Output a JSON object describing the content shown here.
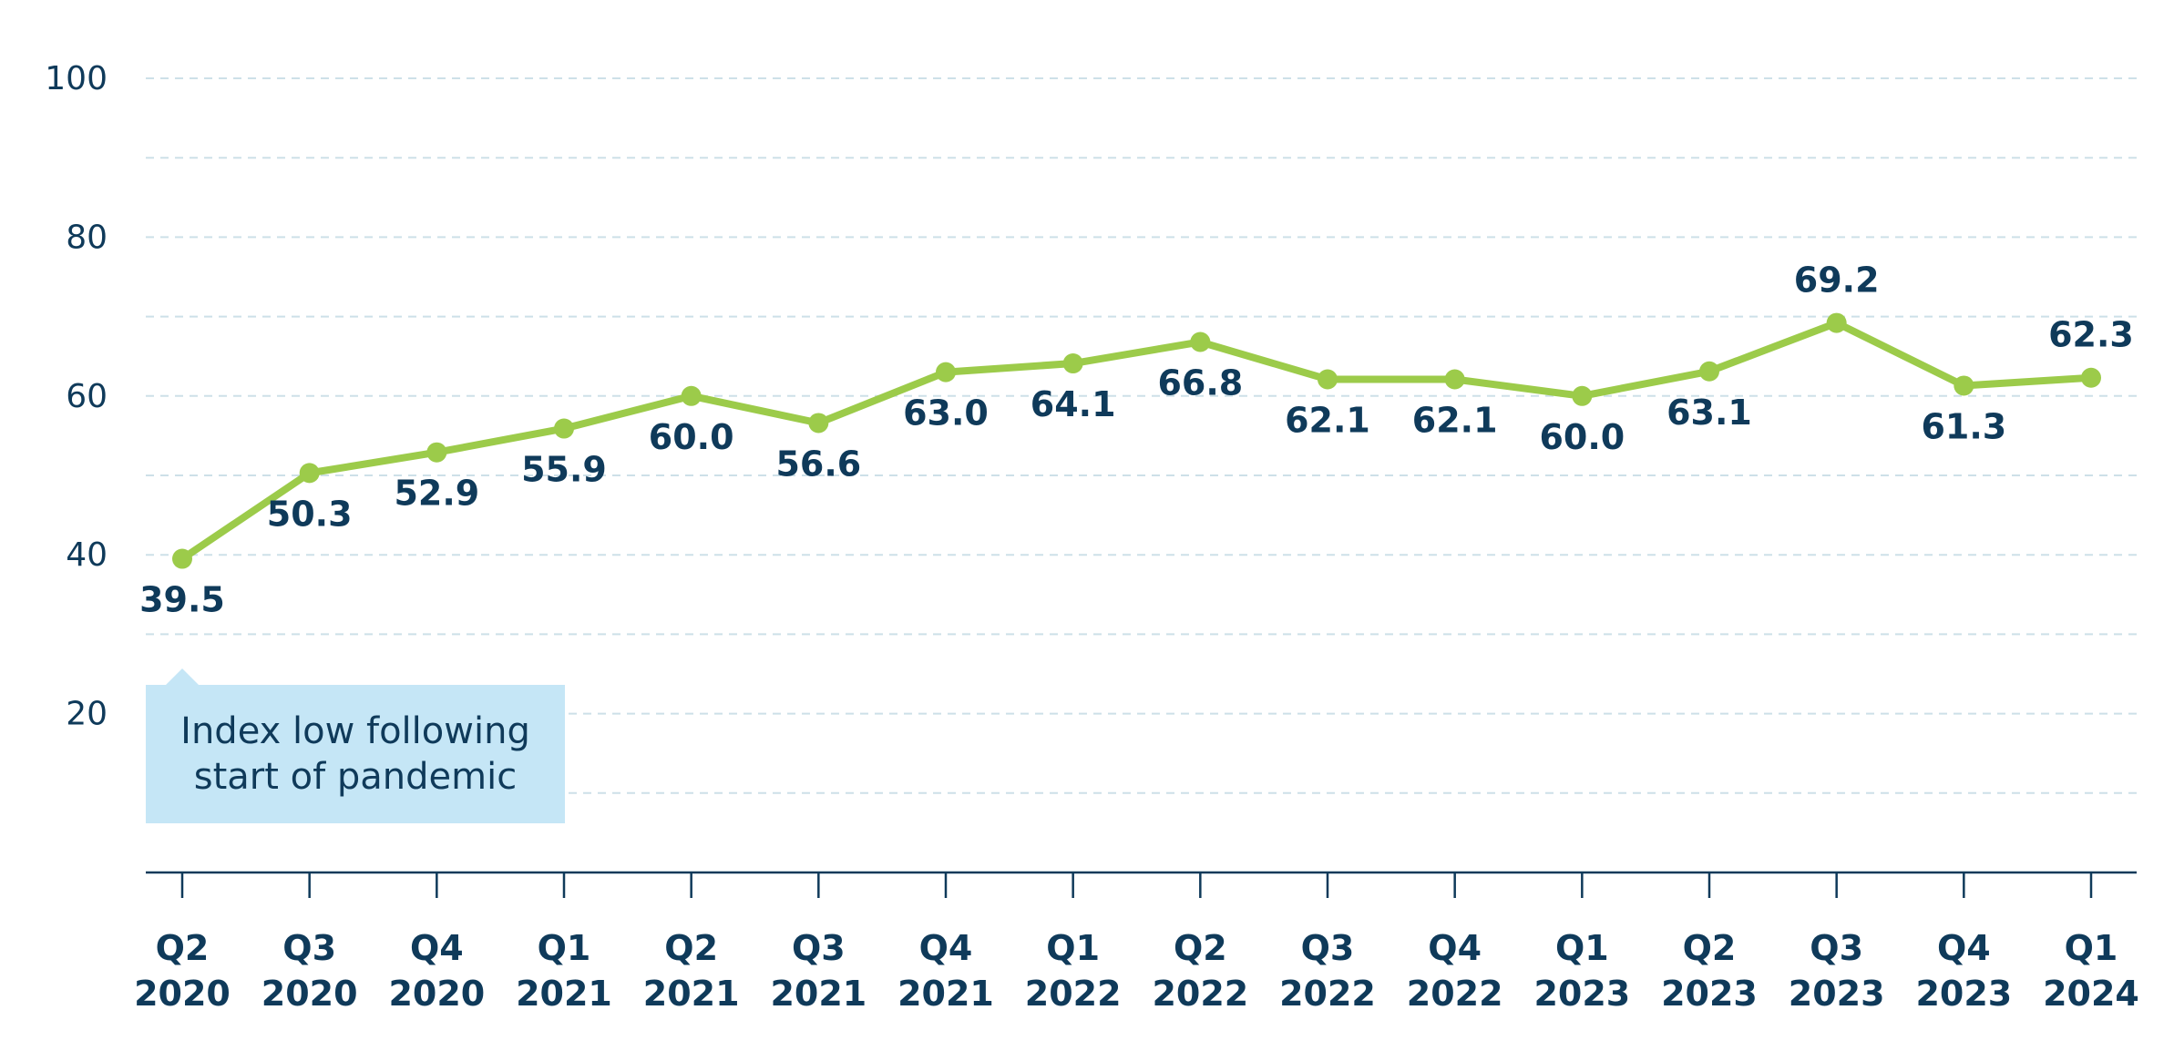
{
  "chart_data": {
    "type": "line",
    "title": "",
    "xlabel": "",
    "ylabel": "",
    "ylim": [
      0,
      100
    ],
    "yticks": [
      20,
      40,
      60,
      80,
      100
    ],
    "grid": true,
    "categories": [
      {
        "quarter": "Q2",
        "year": "2020"
      },
      {
        "quarter": "Q3",
        "year": "2020"
      },
      {
        "quarter": "Q4",
        "year": "2020"
      },
      {
        "quarter": "Q1",
        "year": "2021"
      },
      {
        "quarter": "Q2",
        "year": "2021"
      },
      {
        "quarter": "Q3",
        "year": "2021"
      },
      {
        "quarter": "Q4",
        "year": "2021"
      },
      {
        "quarter": "Q1",
        "year": "2022"
      },
      {
        "quarter": "Q2",
        "year": "2022"
      },
      {
        "quarter": "Q3",
        "year": "2022"
      },
      {
        "quarter": "Q4",
        "year": "2022"
      },
      {
        "quarter": "Q1",
        "year": "2023"
      },
      {
        "quarter": "Q2",
        "year": "2023"
      },
      {
        "quarter": "Q3",
        "year": "2023"
      },
      {
        "quarter": "Q4",
        "year": "2023"
      },
      {
        "quarter": "Q1",
        "year": "2024"
      }
    ],
    "values": [
      39.5,
      50.3,
      52.9,
      55.9,
      60.0,
      56.6,
      63.0,
      64.1,
      66.8,
      62.1,
      62.1,
      60.0,
      63.1,
      69.2,
      61.3,
      62.3
    ],
    "value_labels": [
      "39.5",
      "50.3",
      "52.9",
      "55.9",
      "60.0",
      "56.6",
      "63.0",
      "64.1",
      "66.8",
      "62.1",
      "62.1",
      "60.0",
      "63.1",
      "69.2",
      "61.3",
      "62.3"
    ],
    "annotation": {
      "lines": [
        "Index low following",
        "start of pandemic"
      ],
      "target_index": 0
    },
    "colors": {
      "line": "#9ccb4a",
      "text": "#0f3a5a",
      "grid": "#cde0e8",
      "axis": "#0f3a5a",
      "callout_bg": "#c5e6f6"
    }
  }
}
